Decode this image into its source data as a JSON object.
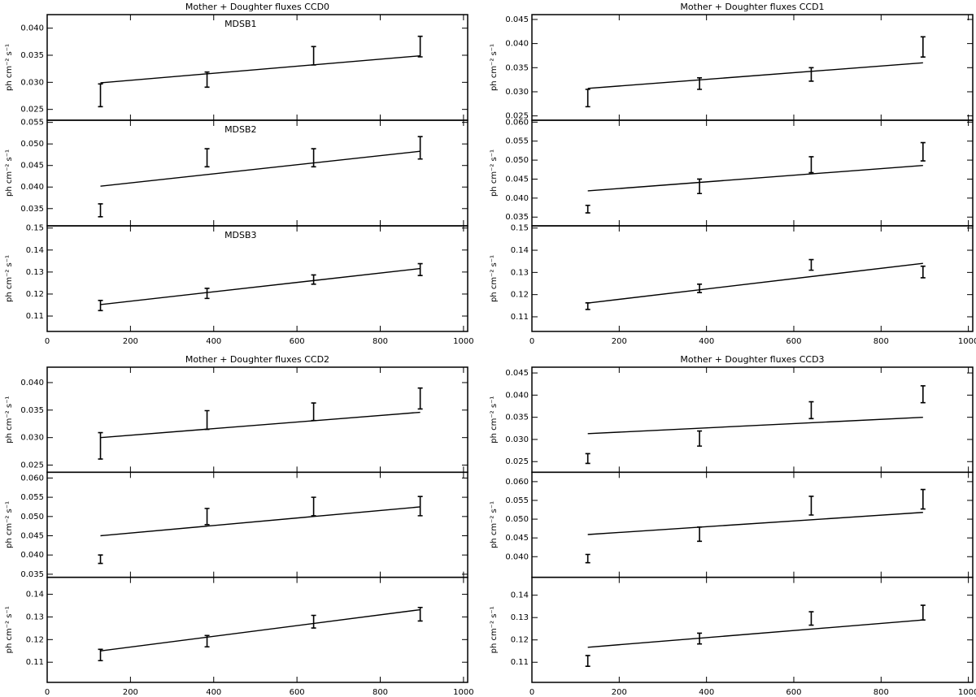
{
  "chart_data": [
    {
      "type": "errorbar",
      "title": "Mother + Doughter fluxes CCD0",
      "xlim": [
        0,
        1010
      ],
      "xticks": [
        0,
        200,
        400,
        600,
        800,
        1000
      ],
      "panels": [
        {
          "label": "MDSB1",
          "ylabel": "ph cm⁻² s⁻¹",
          "ylim": [
            0.023,
            0.0425
          ],
          "yticks": [
            0.025,
            {
              "value": 0.03,
              "label": "0.030"
            },
            0.035,
            {
              "value": 0.04,
              "label": "0.040"
            }
          ],
          "x": [
            128,
            384,
            640,
            896
          ],
          "values": [
            0.0276,
            0.0305,
            0.0349,
            0.0366
          ],
          "errors": [
            0.0021,
            0.0014,
            0.0017,
            0.0019
          ],
          "fit": {
            "x": [
              128,
              896
            ],
            "values": [
              0.0299,
              0.0349
            ]
          }
        },
        {
          "label": "MDSB2",
          "ylabel": "ph cm⁻² s⁻¹",
          "ylim": [
            0.031,
            0.0555
          ],
          "yticks": [
            0.035,
            {
              "value": 0.04,
              "label": "0.040"
            },
            0.045,
            {
              "value": 0.05,
              "label": "0.050"
            },
            0.055
          ],
          "x": [
            128,
            384,
            640,
            896
          ],
          "values": [
            0.0346,
            0.0468,
            0.0468,
            0.0491
          ],
          "errors": [
            0.0015,
            0.0021,
            0.0021,
            0.0026
          ],
          "fit": {
            "x": [
              128,
              896
            ],
            "values": [
              0.0402,
              0.0483
            ]
          }
        },
        {
          "label": "MDSB3",
          "ylabel": "ph cm⁻² s⁻¹",
          "ylim": [
            0.103,
            0.151
          ],
          "yticks": [
            0.11,
            0.12,
            0.13,
            0.14,
            0.15
          ],
          "x": [
            128,
            384,
            640,
            896
          ],
          "values": [
            0.1148,
            0.1203,
            0.1266,
            0.1311
          ],
          "errors": [
            0.0023,
            0.0023,
            0.0021,
            0.0027
          ],
          "fit": {
            "x": [
              128,
              896
            ],
            "values": [
              0.1152,
              0.1316
            ]
          }
        }
      ]
    },
    {
      "type": "errorbar",
      "title": "Mother + Doughter fluxes CCD1",
      "xlim": [
        0,
        1010
      ],
      "xticks": [
        0,
        200,
        400,
        600,
        800,
        1000
      ],
      "panels": [
        {
          "ylabel": "ph cm⁻² s⁻¹",
          "ylim": [
            0.0241,
            0.046
          ],
          "yticks": [
            0.025,
            {
              "value": 0.03,
              "label": "0.030"
            },
            0.035,
            {
              "value": 0.04,
              "label": "0.040"
            },
            0.045
          ],
          "x": [
            128,
            384,
            640,
            896
          ],
          "values": [
            0.0287,
            0.0317,
            0.0336,
            0.0393
          ],
          "errors": [
            0.0018,
            0.0012,
            0.0014,
            0.0021
          ],
          "fit": {
            "x": [
              128,
              896
            ],
            "values": [
              0.0307,
              0.036
            ]
          }
        },
        {
          "ylabel": "ph cm⁻² s⁻¹",
          "ylim": [
            0.0327,
            0.0605
          ],
          "yticks": [
            0.035,
            {
              "value": 0.04,
              "label": "0.040"
            },
            0.045,
            {
              "value": 0.05,
              "label": "0.050"
            },
            0.055,
            {
              "value": 0.06,
              "label": "0.060"
            }
          ],
          "x": [
            128,
            384,
            640,
            896
          ],
          "values": [
            0.0371,
            0.0431,
            0.0488,
            0.0522
          ],
          "errors": [
            0.001,
            0.0019,
            0.0021,
            0.0024
          ],
          "fit": {
            "x": [
              128,
              896
            ],
            "values": [
              0.0419,
              0.0486
            ]
          }
        },
        {
          "ylabel": "ph cm⁻² s⁻¹",
          "ylim": [
            0.1034,
            0.151
          ],
          "yticks": [
            0.11,
            0.12,
            0.13,
            0.14,
            0.15
          ],
          "x": [
            128,
            384,
            640,
            896
          ],
          "values": [
            0.1148,
            0.1228,
            0.1334,
            0.1302
          ],
          "errors": [
            0.0015,
            0.0019,
            0.0024,
            0.0026
          ],
          "fit": {
            "x": [
              128,
              896
            ],
            "values": [
              0.1162,
              0.1341
            ]
          }
        }
      ]
    },
    {
      "type": "errorbar",
      "title": "Mother + Doughter fluxes CCD2",
      "xlim": [
        0,
        1010
      ],
      "xticks": [
        0,
        200,
        400,
        600,
        800,
        1000
      ],
      "panels": [
        {
          "ylabel": "ph cm⁻² s⁻¹",
          "ylim": [
            0.0237,
            0.0428
          ],
          "yticks": [
            0.025,
            {
              "value": 0.03,
              "label": "0.030"
            },
            0.035,
            {
              "value": 0.04,
              "label": "0.040"
            }
          ],
          "x": [
            128,
            384,
            640,
            896
          ],
          "values": [
            0.0285,
            0.0332,
            0.0347,
            0.0371
          ],
          "errors": [
            0.0024,
            0.0017,
            0.0016,
            0.0019
          ],
          "fit": {
            "x": [
              128,
              896
            ],
            "values": [
              0.03,
              0.0346
            ]
          }
        },
        {
          "ylabel": "ph cm⁻² s⁻¹",
          "ylim": [
            0.0342,
            0.0615
          ],
          "yticks": [
            0.035,
            {
              "value": 0.04,
              "label": "0.040"
            },
            0.045,
            {
              "value": 0.05,
              "label": "0.050"
            },
            0.055,
            {
              "value": 0.06,
              "label": "0.060"
            }
          ],
          "x": [
            128,
            384,
            640,
            896
          ],
          "values": [
            0.0389,
            0.05,
            0.0526,
            0.0527
          ],
          "errors": [
            0.0011,
            0.0021,
            0.0024,
            0.0025
          ],
          "fit": {
            "x": [
              128,
              896
            ],
            "values": [
              0.045,
              0.0525
            ]
          }
        },
        {
          "ylabel": "ph cm⁻² s⁻¹",
          "ylim": [
            0.1011,
            0.1475
          ],
          "yticks": [
            0.11,
            0.12,
            0.13,
            0.14
          ],
          "x": [
            128,
            384,
            640,
            896
          ],
          "values": [
            0.1132,
            0.1193,
            0.1279,
            0.1312
          ],
          "errors": [
            0.0025,
            0.0025,
            0.0028,
            0.003
          ],
          "fit": {
            "x": [
              128,
              896
            ],
            "values": [
              0.115,
              0.1332
            ]
          }
        }
      ]
    },
    {
      "type": "errorbar",
      "title": "Mother + Doughter fluxes CCD3",
      "xlim": [
        0,
        1010
      ],
      "xticks": [
        0,
        200,
        400,
        600,
        800,
        1000
      ],
      "panels": [
        {
          "ylabel": "ph cm⁻² s⁻¹",
          "ylim": [
            0.0226,
            0.0463
          ],
          "yticks": [
            0.025,
            {
              "value": 0.03,
              "label": "0.030"
            },
            0.035,
            {
              "value": 0.04,
              "label": "0.040"
            },
            0.045
          ],
          "x": [
            128,
            384,
            640,
            896
          ],
          "values": [
            0.0257,
            0.0302,
            0.0366,
            0.0402
          ],
          "errors": [
            0.0011,
            0.0017,
            0.0019,
            0.0019
          ],
          "fit": {
            "x": [
              128,
              896
            ],
            "values": [
              0.0313,
              0.035
            ]
          }
        },
        {
          "ylabel": "ph cm⁻² s⁻¹",
          "ylim": [
            0.0345,
            0.0625
          ],
          "yticks": [
            {
              "value": 0.04,
              "label": "0.040"
            },
            0.045,
            {
              "value": 0.05,
              "label": "0.050"
            },
            0.055,
            {
              "value": 0.06,
              "label": "0.060"
            }
          ],
          "x": [
            128,
            384,
            640,
            896
          ],
          "values": [
            0.0395,
            0.046,
            0.0536,
            0.0553
          ],
          "errors": [
            0.0011,
            0.0019,
            0.0025,
            0.0026
          ],
          "fit": {
            "x": [
              128,
              896
            ],
            "values": [
              0.0459,
              0.0518
            ]
          }
        },
        {
          "ylabel": "ph cm⁻² s⁻¹",
          "ylim": [
            0.101,
            0.148
          ],
          "yticks": [
            0.11,
            0.12,
            0.13,
            0.14
          ],
          "x": [
            128,
            384,
            640,
            896
          ],
          "values": [
            0.1106,
            0.1206,
            0.1296,
            0.1322
          ],
          "errors": [
            0.0024,
            0.0024,
            0.003,
            0.0033
          ],
          "fit": {
            "x": [
              128,
              896
            ],
            "values": [
              0.1167,
              0.1289
            ]
          }
        }
      ]
    }
  ]
}
